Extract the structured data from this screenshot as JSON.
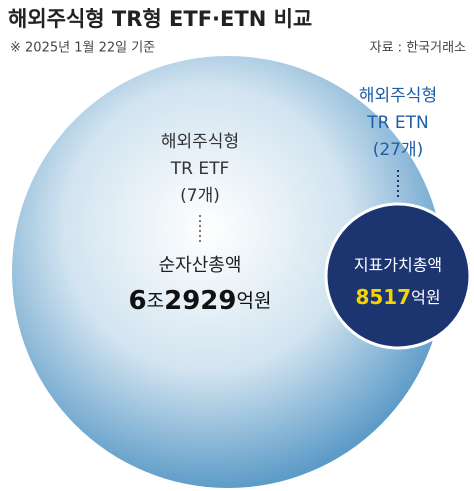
{
  "header": {
    "title": "해외주식형 TR형 ETF·ETN 비교",
    "note": "※ 2025년 1월 22일 기준",
    "source": "자료 : 한국거래소"
  },
  "etf": {
    "lines": [
      "해외주식형",
      "TR ETF",
      "(7개)"
    ],
    "metric": "순자산총액",
    "amount": [
      "6",
      "조",
      "2929",
      "억원"
    ]
  },
  "etn": {
    "lines": [
      "해외주식형",
      "TR ETN",
      "(27개)"
    ],
    "metric": "지표가치총액",
    "amount": [
      "8517",
      "억원"
    ]
  }
}
